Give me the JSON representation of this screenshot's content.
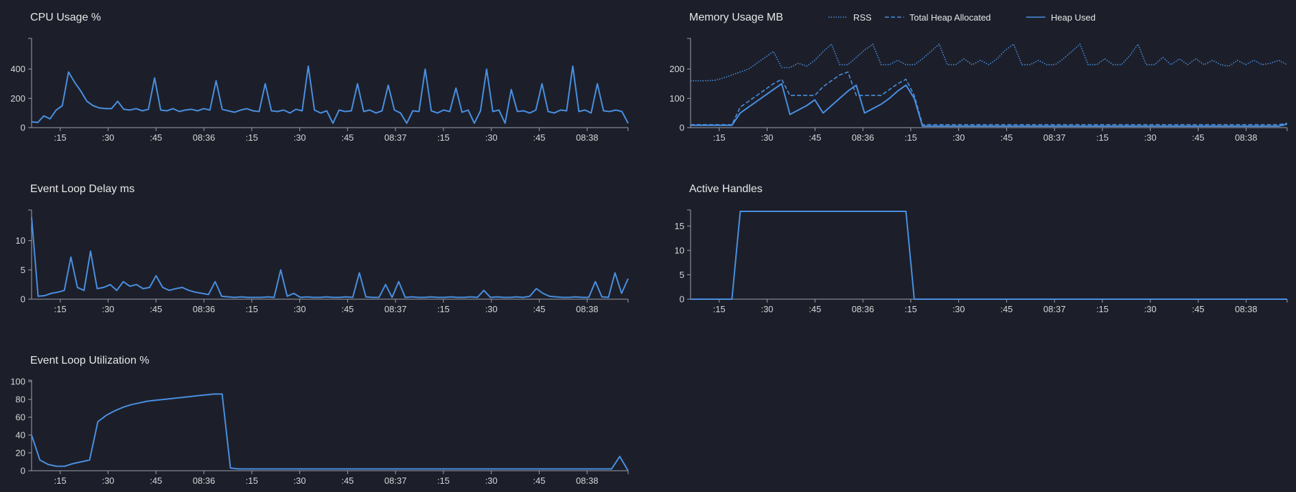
{
  "theme": {
    "background": "#1c1f2a",
    "text": "#e8e8e8",
    "axis": "#9ea3ad",
    "series_color": "#4a90e2"
  },
  "chart_data": [
    {
      "id": "cpu",
      "type": "line",
      "title": "CPU Usage %",
      "ylim": [
        0,
        600
      ],
      "yticks": [
        0,
        200,
        400
      ],
      "x_tick_labels": [
        ":15",
        ":30",
        ":45",
        "08:36",
        ":15",
        ":30",
        ":45",
        "08:37",
        ":15",
        ":30",
        ":45",
        "08:38"
      ],
      "legend": [],
      "series": [
        {
          "style": "solid",
          "values": [
            40,
            35,
            80,
            60,
            120,
            150,
            380,
            310,
            250,
            180,
            150,
            135,
            130,
            130,
            180,
            125,
            120,
            130,
            115,
            125,
            340,
            120,
            115,
            130,
            110,
            120,
            125,
            115,
            130,
            120,
            320,
            125,
            115,
            105,
            120,
            130,
            115,
            110,
            300,
            115,
            110,
            120,
            100,
            125,
            115,
            420,
            120,
            100,
            115,
            30,
            120,
            110,
            115,
            300,
            110,
            120,
            100,
            115,
            290,
            120,
            100,
            30,
            115,
            110,
            400,
            115,
            100,
            120,
            110,
            270,
            105,
            120,
            30,
            115,
            400,
            110,
            120,
            30,
            260,
            110,
            115,
            100,
            120,
            300,
            110,
            100,
            120,
            115,
            420,
            110,
            120,
            100,
            300,
            115,
            110,
            120,
            110,
            30
          ]
        }
      ]
    },
    {
      "id": "memory",
      "type": "line",
      "title": "Memory Usage MB",
      "ylim": [
        0,
        300
      ],
      "yticks": [
        0,
        100,
        200
      ],
      "x_tick_labels": [
        ":15",
        ":30",
        ":45",
        "08:36",
        ":15",
        ":30",
        ":45",
        "08:37",
        ":15",
        ":30",
        ":45",
        "08:38"
      ],
      "legend": [
        "RSS",
        "Total Heap Allocated",
        "Heap Used"
      ],
      "series": [
        {
          "name": "RSS",
          "style": "dotted",
          "values": [
            160,
            160,
            160,
            162,
            170,
            180,
            190,
            200,
            220,
            240,
            260,
            205,
            205,
            220,
            210,
            230,
            260,
            285,
            215,
            215,
            240,
            265,
            285,
            215,
            215,
            230,
            215,
            215,
            235,
            260,
            285,
            215,
            215,
            235,
            215,
            230,
            215,
            235,
            265,
            285,
            215,
            215,
            230,
            215,
            215,
            235,
            260,
            285,
            215,
            215,
            235,
            215,
            215,
            245,
            285,
            215,
            215,
            240,
            215,
            235,
            215,
            235,
            215,
            230,
            215,
            210,
            230,
            215,
            230,
            215,
            220,
            230,
            215
          ]
        },
        {
          "name": "Total Heap Allocated",
          "style": "dashed",
          "values": [
            10,
            10,
            10,
            10,
            10,
            10,
            70,
            90,
            110,
            130,
            150,
            165,
            110,
            110,
            110,
            110,
            140,
            160,
            180,
            190,
            110,
            110,
            110,
            110,
            130,
            150,
            165,
            110,
            10,
            10,
            10,
            10,
            10,
            10,
            10,
            10,
            10,
            10,
            10,
            10,
            10,
            10,
            10,
            10,
            10,
            10,
            10,
            10,
            10,
            10,
            10,
            10,
            10,
            10,
            10,
            10,
            10,
            10,
            10,
            10,
            10,
            10,
            10,
            10,
            10,
            10,
            10,
            10,
            10,
            10,
            10,
            10,
            15
          ]
        },
        {
          "name": "Heap Used",
          "style": "solid",
          "values": [
            8,
            8,
            8,
            8,
            8,
            8,
            50,
            70,
            90,
            110,
            130,
            150,
            45,
            60,
            75,
            95,
            50,
            75,
            100,
            125,
            145,
            50,
            65,
            80,
            100,
            125,
            145,
            100,
            5,
            5,
            5,
            5,
            5,
            5,
            5,
            5,
            5,
            5,
            5,
            5,
            5,
            5,
            5,
            5,
            5,
            5,
            5,
            5,
            5,
            5,
            5,
            5,
            5,
            5,
            5,
            5,
            5,
            5,
            5,
            5,
            5,
            5,
            5,
            5,
            5,
            5,
            5,
            5,
            5,
            5,
            5,
            5,
            12
          ]
        }
      ]
    },
    {
      "id": "event-loop-delay",
      "type": "line",
      "title": "Event Loop Delay ms",
      "ylim": [
        0,
        15
      ],
      "yticks": [
        0,
        5,
        10
      ],
      "x_tick_labels": [
        ":15",
        ":30",
        ":45",
        "08:36",
        ":15",
        ":30",
        ":45",
        "08:37",
        ":15",
        ":30",
        ":45",
        "08:38"
      ],
      "legend": [],
      "series": [
        {
          "style": "solid",
          "values": [
            14,
            0.5,
            0.6,
            1,
            1.2,
            1.5,
            7.2,
            2,
            1.5,
            8.2,
            1.8,
            2,
            2.5,
            1.5,
            3,
            2.2,
            2.5,
            1.8,
            2,
            4,
            2,
            1.5,
            1.8,
            2,
            1.5,
            1.2,
            1,
            0.8,
            3,
            0.5,
            0.4,
            0.3,
            0.4,
            0.3,
            0.3,
            0.3,
            0.4,
            0.3,
            5,
            0.5,
            1,
            0.3,
            0.4,
            0.3,
            0.3,
            0.4,
            0.3,
            0.3,
            0.4,
            0.3,
            4.5,
            0.4,
            0.3,
            0.3,
            2.5,
            0.3,
            3,
            0.3,
            0.4,
            0.3,
            0.3,
            0.4,
            0.3,
            0.3,
            0.4,
            0.3,
            0.3,
            0.4,
            0.3,
            1.5,
            0.3,
            0.4,
            0.3,
            0.3,
            0.4,
            0.3,
            0.5,
            1.8,
            1,
            0.5,
            0.4,
            0.3,
            0.3,
            0.4,
            0.3,
            0.3,
            3,
            0.4,
            0.3,
            4.5,
            1,
            3.5
          ]
        }
      ]
    },
    {
      "id": "active-handles",
      "type": "line",
      "title": "Active Handles",
      "ylim": [
        0,
        18
      ],
      "yticks": [
        0,
        5,
        10,
        15
      ],
      "x_tick_labels": [
        ":15",
        ":30",
        ":45",
        "08:36",
        ":15",
        ":30",
        ":45",
        "08:37",
        ":15",
        ":30",
        ":45",
        "08:38"
      ],
      "legend": [],
      "series": [
        {
          "style": "solid",
          "values": [
            0,
            0,
            0,
            0,
            0,
            0,
            18,
            18,
            18,
            18,
            18,
            18,
            18,
            18,
            18,
            18,
            18,
            18,
            18,
            18,
            18,
            18,
            18,
            18,
            18,
            18,
            18,
            0,
            0,
            0,
            0,
            0,
            0,
            0,
            0,
            0,
            0,
            0,
            0,
            0,
            0,
            0,
            0,
            0,
            0,
            0,
            0,
            0,
            0,
            0,
            0,
            0,
            0,
            0,
            0,
            0,
            0,
            0,
            0,
            0,
            0,
            0,
            0,
            0,
            0,
            0,
            0,
            0,
            0,
            0,
            0,
            0,
            0
          ]
        }
      ]
    },
    {
      "id": "event-loop-utilization",
      "type": "line",
      "title": "Event Loop Utilization %",
      "ylim": [
        0,
        100
      ],
      "yticks": [
        0,
        20,
        40,
        60,
        80,
        100
      ],
      "x_tick_labels": [
        ":15",
        ":30",
        ":45",
        "08:36",
        ":15",
        ":30",
        ":45",
        "08:37",
        ":15",
        ":30",
        ":45",
        "08:38"
      ],
      "legend": [],
      "series": [
        {
          "style": "solid",
          "values": [
            40,
            12,
            7,
            5,
            5,
            8,
            10,
            12,
            55,
            62,
            67,
            71,
            74,
            76,
            78,
            79,
            80,
            81,
            82,
            83,
            84,
            85,
            86,
            86,
            3,
            2,
            2,
            2,
            2,
            2,
            2,
            2,
            2,
            2,
            2,
            2,
            2,
            2,
            2,
            2,
            2,
            2,
            2,
            2,
            2,
            2,
            2,
            2,
            2,
            2,
            2,
            2,
            2,
            2,
            2,
            2,
            2,
            2,
            2,
            2,
            2,
            2,
            2,
            2,
            2,
            2,
            2,
            2,
            2,
            2,
            2,
            16,
            0
          ]
        }
      ]
    }
  ]
}
